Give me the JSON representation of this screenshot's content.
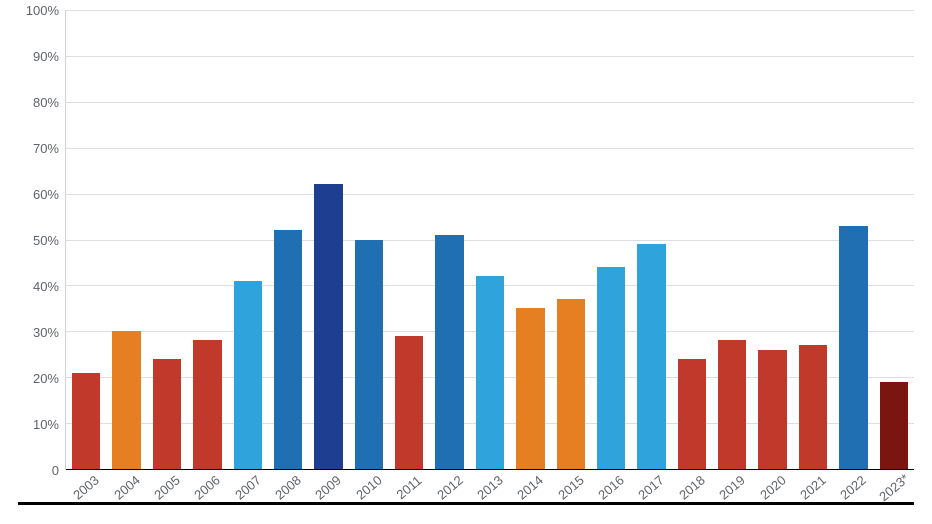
{
  "chart": {
    "type": "bar",
    "ylim": [
      0,
      100
    ],
    "y_ticks": [
      "100%",
      "90%",
      "80%",
      "70%",
      "60%",
      "50%",
      "40%",
      "30%",
      "20%",
      "10%",
      "0"
    ],
    "grid_color": "#dcdfe2",
    "axis_color": "#cfd3d6",
    "background_color": "#ffffff",
    "label_fontsize": 13,
    "label_color": "#5f6368",
    "x_label_angle": -40,
    "bars": [
      {
        "label": "2003",
        "value": 21,
        "color": "#c0392b"
      },
      {
        "label": "2004",
        "value": 30,
        "color": "#e67e22"
      },
      {
        "label": "2005",
        "value": 24,
        "color": "#c0392b"
      },
      {
        "label": "2006",
        "value": 28,
        "color": "#c0392b"
      },
      {
        "label": "2007",
        "value": 41,
        "color": "#2ea3dc"
      },
      {
        "label": "2008",
        "value": 52,
        "color": "#1f6fb2"
      },
      {
        "label": "2009",
        "value": 62,
        "color": "#1d3e91"
      },
      {
        "label": "2010",
        "value": 50,
        "color": "#1f6fb2"
      },
      {
        "label": "2011",
        "value": 29,
        "color": "#c0392b"
      },
      {
        "label": "2012",
        "value": 51,
        "color": "#1f6fb2"
      },
      {
        "label": "2013",
        "value": 42,
        "color": "#2ea3dc"
      },
      {
        "label": "2014",
        "value": 35,
        "color": "#e67e22"
      },
      {
        "label": "2015",
        "value": 37,
        "color": "#e67e22"
      },
      {
        "label": "2016",
        "value": 44,
        "color": "#2ea3dc"
      },
      {
        "label": "2017",
        "value": 49,
        "color": "#2ea3dc"
      },
      {
        "label": "2018",
        "value": 24,
        "color": "#c0392b"
      },
      {
        "label": "2019",
        "value": 28,
        "color": "#c0392b"
      },
      {
        "label": "2020",
        "value": 26,
        "color": "#c0392b"
      },
      {
        "label": "2021",
        "value": 27,
        "color": "#c0392b"
      },
      {
        "label": "2022",
        "value": 53,
        "color": "#1f6fb2"
      },
      {
        "label": "2023*",
        "value": 19,
        "color": "#7b1510"
      }
    ]
  }
}
